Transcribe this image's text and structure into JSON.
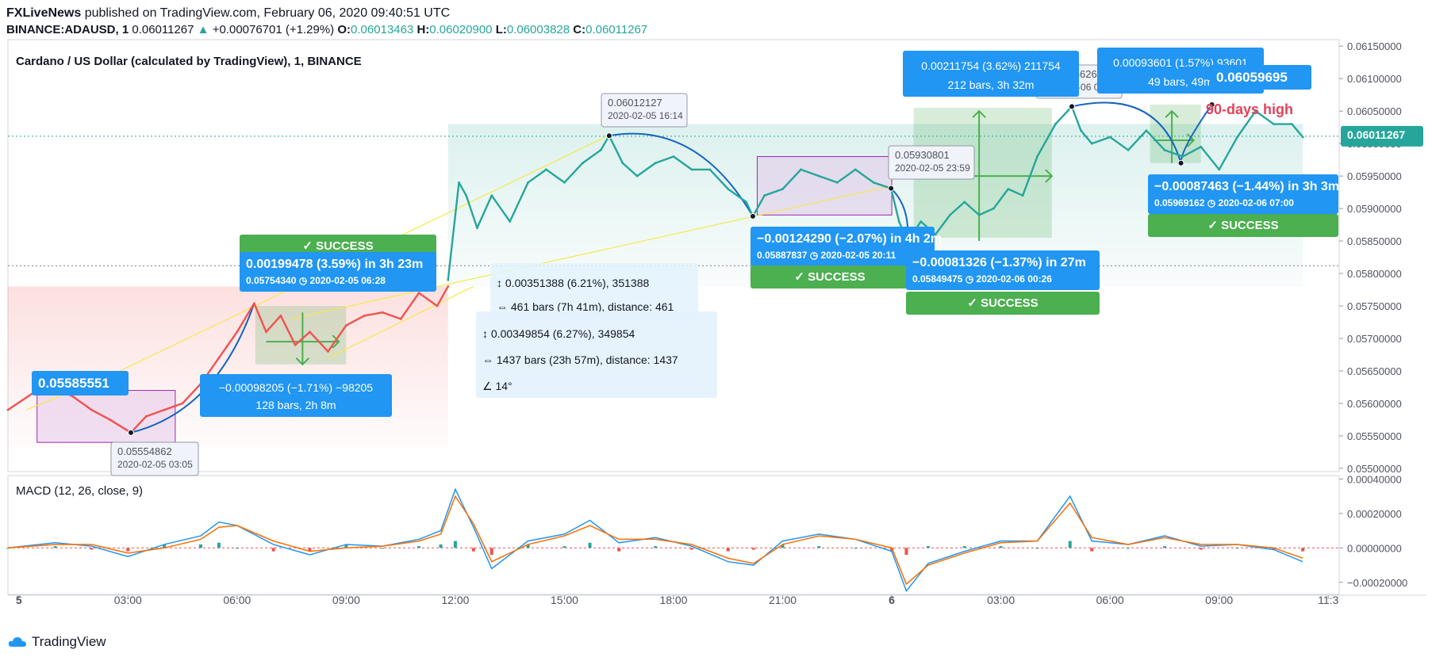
{
  "header": {
    "publisher": "FXLiveNews",
    "published_line": "published on TradingView.com, February 06, 2020 09:40:51 UTC",
    "symbol": "BINANCE:ADAUSD, 1",
    "last": "0.06011267",
    "change": "+0.00076701 (+1.29%)",
    "o_label": "O:",
    "o": "0.06013463",
    "h_label": "H:",
    "h": "0.06020900",
    "l_label": "L:",
    "l": "0.06003828",
    "c_label": "C:",
    "c": "0.06011267"
  },
  "pane_title": "Cardano / US Dollar (calculated by TradingView), 1, BINANCE",
  "macd_title": "MACD (12, 26, close, 9)",
  "footer": {
    "brand": "TradingView"
  },
  "colors": {
    "up": "#26a69a",
    "down": "#ef5350",
    "macd": "#2196f3",
    "signal": "#ff6d00",
    "label_blue": "#2196f3",
    "success": "#4caf50",
    "text": "#131722"
  },
  "annotations": {
    "label_start": "0.05585551",
    "label_end": "0.06059695",
    "days_high": "90-days high",
    "low1_price": "0.05554862",
    "low1_time": "2020-02-05 03:05",
    "high1_price": "0.06012127",
    "high1_time": "2020-02-05 16:14",
    "pt3_price": "0.05930801",
    "pt3_time": "2020-02-05 23:59",
    "pt4_price": "0.06056626",
    "pt4_time": "2020-02-06 04:57",
    "box_left_up": "0.00199478 (3.59%) in 3h 23m",
    "box_left_up_sub": "0.05754340 ◷ 2020-02-05  06:28",
    "box_left_down_1": "−0.00098205 (−1.71%) −98205",
    "box_left_down_2": "128 bars, 2h 8m",
    "meas1_1": "0.00351388 (6.21%), 351388",
    "meas1_2": "461 bars (7h 41m), distance: 461",
    "meas2_1": "0.00349854 (6.27%), 349854",
    "meas2_2": "1437 bars (23h 57m), distance: 1437",
    "meas2_3": "14°",
    "box_mid_down": "−0.00124290 (−2.07%) in 4h 2m",
    "box_mid_down_sub": "0.05887837 ◷ 2020-02-05  20:11",
    "box_up2_1": "0.00211754 (3.62%) 211754",
    "box_up2_2": "212 bars, 3h 32m",
    "box_low2": "−0.00081326 (−1.37%) in 27m",
    "box_low2_sub": "0.05849475 ◷ 2020-02-06  00:26",
    "box_up3_1": "0.00093601 (1.57%) 93601",
    "box_up3_2": "49 bars, 49m",
    "box_right_down": "−0.00087463 (−1.44%) in 3h 3m",
    "box_right_down_sub": "0.05969162 ◷ 2020-02-06  07:00",
    "success": "✓  SUCCESS",
    "last_price_tag": "0.06011267"
  },
  "chart_data": [
    {
      "type": "line",
      "title": "Cardano / US Dollar (calculated by TradingView), 1, BINANCE",
      "x_ticks": [
        "5",
        "03:00",
        "06:00",
        "09:00",
        "12:00",
        "15:00",
        "18:00",
        "21:00",
        "6",
        "03:00",
        "06:00",
        "09:00",
        "11:3"
      ],
      "x_tick_hours": [
        0,
        3,
        6,
        9,
        12,
        15,
        18,
        21,
        24,
        27,
        30,
        33,
        36
      ],
      "y_ticks": [
        "0.06150000",
        "0.06100000",
        "0.06050000",
        "0.06000000",
        "0.05950000",
        "0.05900000",
        "0.05850000",
        "0.05800000",
        "0.05750000",
        "0.05700000",
        "0.05650000",
        "0.05600000",
        "0.05550000",
        "0.05500000"
      ],
      "y_tick_values": [
        0.0615,
        0.061,
        0.0605,
        0.06,
        0.0595,
        0.059,
        0.0585,
        0.058,
        0.0575,
        0.057,
        0.0565,
        0.056,
        0.0555,
        0.055
      ],
      "ylim": [
        0.05495,
        0.0616
      ],
      "xlim": [
        -0.3,
        36.3
      ],
      "series": [
        {
          "color": "#ef5350",
          "x": [
            -0.3,
            0.5,
            1.0,
            1.5,
            2.0,
            2.5,
            3.08,
            3.5,
            4.0,
            4.5,
            5.0,
            5.5,
            6.0,
            6.47,
            6.8,
            7.2,
            7.6,
            8.0,
            8.5,
            9.0,
            9.5,
            10.0,
            10.5,
            11.0,
            11.5,
            11.8
          ],
          "y": [
            0.0559,
            0.0562,
            0.05625,
            0.0561,
            0.0559,
            0.05575,
            0.05555,
            0.0558,
            0.0559,
            0.056,
            0.0563,
            0.0567,
            0.0571,
            0.05754,
            0.0571,
            0.05735,
            0.0569,
            0.0571,
            0.0568,
            0.0572,
            0.05735,
            0.0574,
            0.0573,
            0.0577,
            0.0575,
            0.0578
          ]
        },
        {
          "color": "#26a69a",
          "x": [
            11.8,
            12.1,
            12.3,
            12.6,
            13.0,
            13.5,
            14.0,
            14.5,
            15.0,
            15.5,
            16.0,
            16.23,
            16.6,
            17.0,
            17.5,
            18.0,
            18.5,
            19.0,
            19.5,
            20.0,
            20.18,
            20.5,
            21.0,
            21.5,
            22.0,
            22.5,
            23.0,
            23.5,
            23.98,
            24.2,
            24.43,
            24.8,
            25.2,
            25.6,
            26.0,
            26.4,
            26.8,
            27.2,
            27.6,
            28.0,
            28.5,
            28.95,
            29.2,
            29.5,
            30.0,
            30.5,
            31.0,
            31.5,
            32.0,
            32.5,
            33.0,
            33.5,
            34.0,
            34.5,
            35.0,
            35.3
          ],
          "y": [
            0.0579,
            0.0594,
            0.0592,
            0.0587,
            0.0592,
            0.0588,
            0.0594,
            0.0596,
            0.0594,
            0.0597,
            0.0599,
            0.06012,
            0.0597,
            0.0595,
            0.0597,
            0.0598,
            0.0596,
            0.0596,
            0.0593,
            0.0591,
            0.05888,
            0.0592,
            0.0593,
            0.0596,
            0.0595,
            0.0594,
            0.0596,
            0.0594,
            0.05931,
            0.0588,
            0.05849,
            0.0588,
            0.0586,
            0.0589,
            0.0591,
            0.0589,
            0.059,
            0.0593,
            0.0592,
            0.0598,
            0.0603,
            0.06057,
            0.0602,
            0.06,
            0.0601,
            0.0599,
            0.0602,
            0.0599,
            0.0598,
            0.05995,
            0.0596,
            0.0601,
            0.0605,
            0.0603,
            0.0603,
            0.0601
          ]
        }
      ]
    },
    {
      "type": "line",
      "title": "MACD (12, 26, close, 9)",
      "y_ticks": [
        "0.00040000",
        "0.00020000",
        "0.00000000",
        "−0.00020000"
      ],
      "y_tick_values": [
        0.0004,
        0.0002,
        0.0,
        -0.0002
      ],
      "ylim": [
        -0.00027,
        0.00042
      ],
      "xlim": [
        -0.3,
        36.3
      ],
      "series": [
        {
          "name": "MACD",
          "color": "#2196f3",
          "x": [
            -0.3,
            1.0,
            2.0,
            3.0,
            4.0,
            5.0,
            5.5,
            6.0,
            7.0,
            8.0,
            9.0,
            10.0,
            11.0,
            11.6,
            12.0,
            12.5,
            13.0,
            14.0,
            15.0,
            15.7,
            16.5,
            17.5,
            18.5,
            19.5,
            20.2,
            21.0,
            22.0,
            23.0,
            24.0,
            24.4,
            25.0,
            26.0,
            27.0,
            28.0,
            28.9,
            29.5,
            30.5,
            31.5,
            32.5,
            33.5,
            34.5,
            35.3
          ],
          "y": [
            0.0,
            3e-05,
            1e-05,
            -5e-05,
            2e-05,
            7e-05,
            0.00015,
            0.00013,
            2e-05,
            -4e-05,
            2e-05,
            1e-05,
            5e-05,
            0.0001,
            0.00034,
            0.00012,
            -0.00012,
            4e-05,
            8e-05,
            0.00016,
            3e-05,
            6e-05,
            1e-05,
            -8e-05,
            -0.0001,
            4e-05,
            8e-05,
            5e-05,
            -2e-05,
            -0.00025,
            -9e-05,
            -2e-05,
            4e-05,
            4e-05,
            0.0003,
            4e-05,
            2e-05,
            7e-05,
            1e-05,
            2e-05,
            -1e-05,
            -8e-05
          ]
        },
        {
          "name": "Signal",
          "color": "#ff6d00",
          "x": [
            -0.3,
            1.0,
            2.0,
            3.0,
            4.0,
            5.0,
            5.5,
            6.0,
            7.0,
            8.0,
            9.0,
            10.0,
            11.0,
            11.6,
            12.0,
            12.5,
            13.0,
            14.0,
            15.0,
            15.7,
            16.5,
            17.5,
            18.5,
            19.5,
            20.2,
            21.0,
            22.0,
            23.0,
            24.0,
            24.4,
            25.0,
            26.0,
            27.0,
            28.0,
            28.9,
            29.5,
            30.5,
            31.5,
            32.5,
            33.5,
            34.5,
            35.3
          ],
          "y": [
            0.0,
            2e-05,
            2e-05,
            -3e-05,
            0.0,
            5e-05,
            0.00012,
            0.00013,
            4e-05,
            -2e-05,
            0.0,
            1e-05,
            4e-05,
            8e-05,
            0.0003,
            0.00014,
            -8e-05,
            2e-05,
            7e-05,
            0.00013,
            5e-05,
            5e-05,
            2e-05,
            -6e-05,
            -9e-05,
            2e-05,
            7e-05,
            5e-05,
            0.0,
            -0.00021,
            -0.0001,
            -3e-05,
            3e-05,
            4e-05,
            0.00026,
            6e-05,
            2e-05,
            6e-05,
            2e-05,
            2e-05,
            0.0,
            -6e-05
          ]
        }
      ]
    }
  ]
}
